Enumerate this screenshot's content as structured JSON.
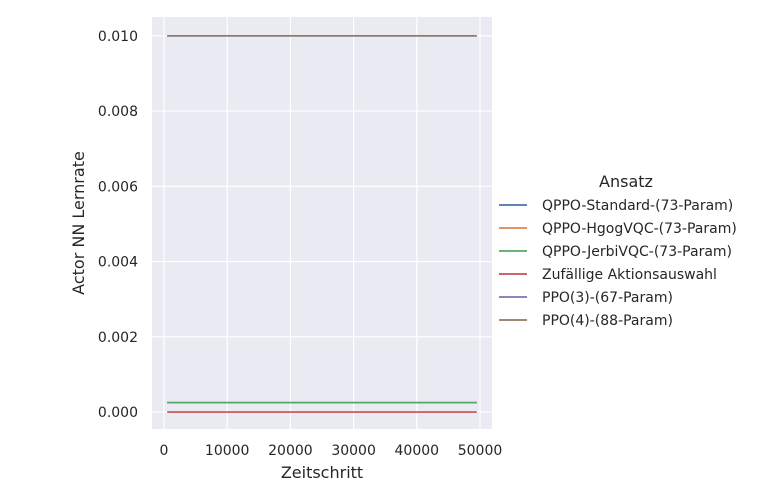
{
  "chart_data": {
    "type": "line",
    "title": "",
    "xlabel": "Zeitschritt",
    "ylabel": "Actor NN Lernrate",
    "xlim": [
      -1900,
      51900
    ],
    "ylim": [
      -0.00045,
      0.0105
    ],
    "xticks": [
      0,
      10000,
      20000,
      30000,
      40000,
      50000
    ],
    "yticks": [
      0.0,
      0.002,
      0.004,
      0.006,
      0.008,
      0.01
    ],
    "xtick_labels": [
      "0",
      "10000",
      "20000",
      "30000",
      "40000",
      "50000"
    ],
    "ytick_labels": [
      "0.000",
      "0.002",
      "0.004",
      "0.006",
      "0.008",
      "0.010"
    ],
    "grid": true,
    "legend": {
      "title": "Ansatz",
      "placement": "right"
    },
    "series": [
      {
        "name": "QPPO-Standard-(73-Param)",
        "color": "#4c72b0",
        "x": [
          500,
          49500
        ],
        "y": [
          0.00025,
          0.00025
        ]
      },
      {
        "name": "QPPO-HgogVQC-(73-Param)",
        "color": "#dd8452",
        "x": [
          500,
          49500
        ],
        "y": [
          0.00025,
          0.00025
        ]
      },
      {
        "name": "QPPO-JerbiVQC-(73-Param)",
        "color": "#55a868",
        "x": [
          500,
          49500
        ],
        "y": [
          0.00025,
          0.00025
        ]
      },
      {
        "name": "Zufällige Aktionsauswahl",
        "color": "#c44e52",
        "x": [
          500,
          49500
        ],
        "y": [
          0.0,
          0.0
        ]
      },
      {
        "name": "PPO(3)-(67-Param)",
        "color": "#8172b3",
        "x": [
          500,
          49500
        ],
        "y": [
          0.01,
          0.01
        ]
      },
      {
        "name": "PPO(4)-(88-Param)",
        "color": "#937860",
        "x": [
          500,
          49500
        ],
        "y": [
          0.01,
          0.01
        ]
      }
    ]
  }
}
